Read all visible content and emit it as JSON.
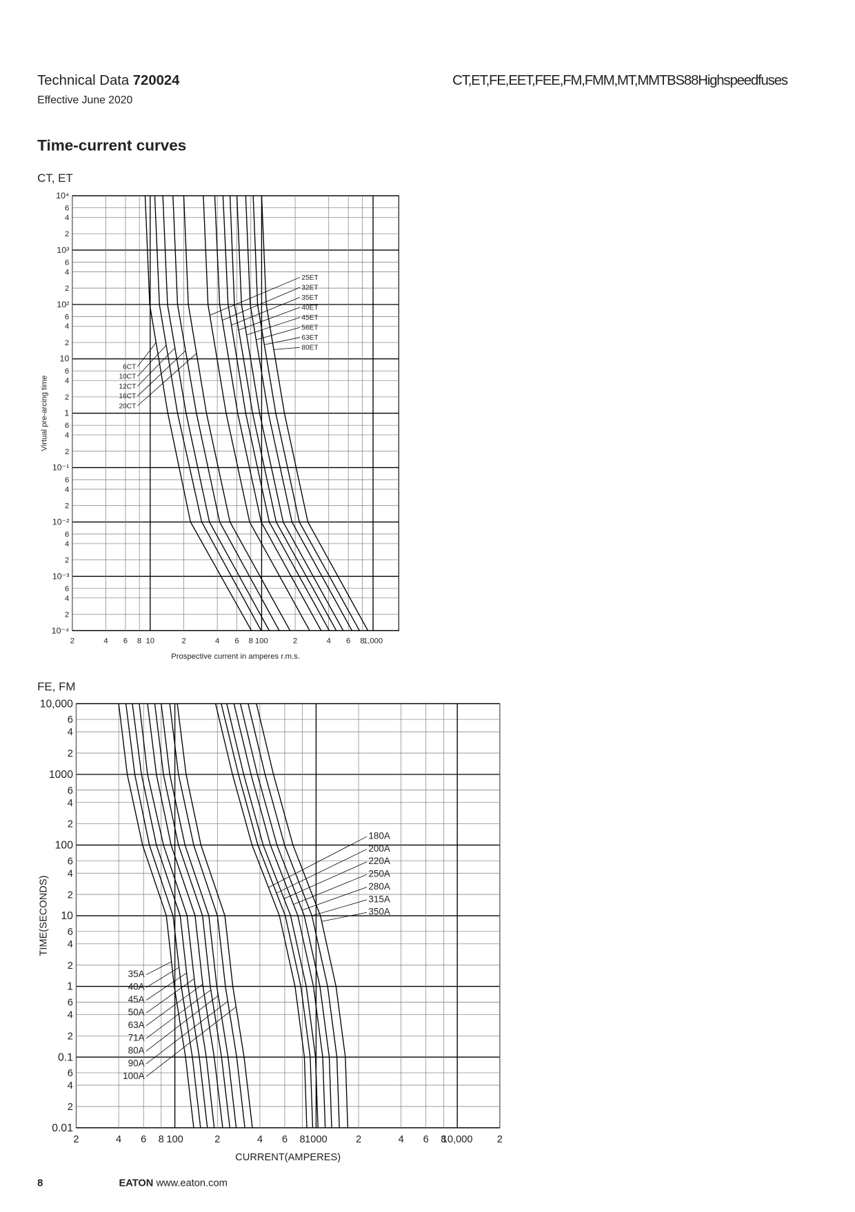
{
  "header": {
    "doc_label": "Technical Data",
    "doc_number": "720024",
    "effective": "Effective June 2020",
    "product": "CT,ET,FE,EET,FEE,FM,FMM,MT,MMTBS88Highspeedfuses"
  },
  "section_title": "Time-current curves",
  "chart_data": [
    {
      "type": "line",
      "title": "CT, ET",
      "y_label": "Virtual pre-arcing time",
      "x_label": "Prospective current in amperes r.m.s.",
      "log_x": true,
      "log_y": true,
      "grid": true,
      "color": "#000000",
      "xlim": [
        2,
        1700
      ],
      "ylim": [
        0.0001,
        10000
      ],
      "xticks": [
        2,
        4,
        6,
        8,
        10,
        {
          "value": 20,
          "label": "2"
        },
        {
          "value": 40,
          "label": "4"
        },
        {
          "value": 60,
          "label": "6"
        },
        {
          "value": 80,
          "label": "8"
        },
        100,
        {
          "value": 200,
          "label": "2"
        },
        {
          "value": 400,
          "label": "4"
        },
        {
          "value": 600,
          "label": "6"
        },
        {
          "value": 800,
          "label": "8"
        },
        {
          "value": 1000,
          "label": "1,000"
        }
      ],
      "yticks": [
        {
          "value": 0.0001,
          "label": "10⁻⁴"
        },
        {
          "value": 0.0002,
          "label": "2"
        },
        {
          "value": 0.0004,
          "label": "4"
        },
        {
          "value": 0.0006,
          "label": "6"
        },
        {
          "value": 0.001,
          "label": "10⁻³"
        },
        {
          "value": 0.002,
          "label": "2"
        },
        {
          "value": 0.004,
          "label": "4"
        },
        {
          "value": 0.006,
          "label": "6"
        },
        {
          "value": 0.01,
          "label": "10⁻²"
        },
        {
          "value": 0.02,
          "label": "2"
        },
        {
          "value": 0.04,
          "label": "4"
        },
        {
          "value": 0.06,
          "label": "6"
        },
        {
          "value": 0.1,
          "label": "10⁻¹"
        },
        {
          "value": 0.2,
          "label": "2"
        },
        {
          "value": 0.4,
          "label": "4"
        },
        {
          "value": 0.6,
          "label": "6"
        },
        1,
        2,
        4,
        6,
        10,
        {
          "value": 20,
          "label": "2"
        },
        {
          "value": 40,
          "label": "4"
        },
        {
          "value": 60,
          "label": "6"
        },
        {
          "value": 100,
          "label": "10²"
        },
        {
          "value": 200,
          "label": "2"
        },
        {
          "value": 400,
          "label": "4"
        },
        {
          "value": 600,
          "label": "6"
        },
        {
          "value": 1000,
          "label": "10³"
        },
        {
          "value": 2000,
          "label": "2"
        },
        {
          "value": 4000,
          "label": "4"
        },
        {
          "value": 6000,
          "label": "6"
        },
        {
          "value": 10000,
          "label": "10⁴"
        }
      ],
      "series": [
        {
          "name": "6CT",
          "x": [
            9,
            9.9,
            14.4,
            23,
            32,
            81
          ],
          "values": [
            10000,
            100,
            1,
            0.01,
            0.003,
            0.0001
          ]
        },
        {
          "name": "10CT",
          "x": [
            11,
            12.1,
            17.6,
            29,
            40,
            99
          ],
          "values": [
            10000,
            100,
            1,
            0.01,
            0.003,
            0.0001
          ]
        },
        {
          "name": "12CT",
          "x": [
            13,
            14.3,
            21,
            34,
            47,
            117
          ],
          "values": [
            10000,
            100,
            1,
            0.01,
            0.003,
            0.0001
          ]
        },
        {
          "name": "16CT",
          "x": [
            16,
            17.6,
            26,
            42,
            58,
            144
          ],
          "values": [
            10000,
            100,
            1,
            0.01,
            0.003,
            0.0001
          ]
        },
        {
          "name": "20CT",
          "x": [
            20,
            22,
            32,
            52,
            72,
            180
          ],
          "values": [
            10000,
            100,
            1,
            0.01,
            0.003,
            0.0001
          ]
        },
        {
          "name": "25ET",
          "x": [
            30,
            33,
            48,
            78,
            108,
            270
          ],
          "values": [
            10000,
            100,
            1,
            0.01,
            0.003,
            0.0001
          ]
        },
        {
          "name": "32ET",
          "x": [
            38,
            42,
            61,
            99,
            137,
            342
          ],
          "values": [
            10000,
            100,
            1,
            0.01,
            0.003,
            0.0001
          ]
        },
        {
          "name": "35ET",
          "x": [
            45,
            50,
            72,
            117,
            162,
            405
          ],
          "values": [
            10000,
            100,
            1,
            0.01,
            0.003,
            0.0001
          ]
        },
        {
          "name": "40ET",
          "x": [
            52,
            57,
            83,
            135,
            187,
            468
          ],
          "values": [
            10000,
            100,
            1,
            0.01,
            0.003,
            0.0001
          ]
        },
        {
          "name": "45ET",
          "x": [
            60,
            66,
            96,
            156,
            216,
            540
          ],
          "values": [
            10000,
            100,
            1,
            0.01,
            0.003,
            0.0001
          ]
        },
        {
          "name": "56ET",
          "x": [
            72,
            79,
            115,
            187,
            259,
            648
          ],
          "values": [
            10000,
            100,
            1,
            0.01,
            0.003,
            0.0001
          ]
        },
        {
          "name": "63ET",
          "x": [
            84,
            92,
            134,
            218,
            302,
            756
          ],
          "values": [
            10000,
            100,
            1,
            0.01,
            0.003,
            0.0001
          ]
        },
        {
          "name": "80ET",
          "x": [
            100,
            110,
            160,
            260,
            360,
            900
          ],
          "values": [
            10000,
            100,
            1,
            0.01,
            0.003,
            0.0001
          ]
        }
      ]
    },
    {
      "type": "line",
      "title": "FE, FM",
      "y_label": "TIME(SECONDS)",
      "x_label": "CURRENT(AMPERES)",
      "log_x": true,
      "log_y": true,
      "grid": true,
      "color": "#000000",
      "xlim": [
        20,
        20000
      ],
      "ylim": [
        0.01,
        10000
      ],
      "xticks": [
        {
          "value": 20,
          "label": "2"
        },
        {
          "value": 40,
          "label": "4"
        },
        {
          "value": 60,
          "label": "6"
        },
        {
          "value": 80,
          "label": "8"
        },
        100,
        {
          "value": 200,
          "label": "2"
        },
        {
          "value": 400,
          "label": "4"
        },
        {
          "value": 600,
          "label": "6"
        },
        {
          "value": 800,
          "label": "8"
        },
        1000,
        {
          "value": 2000,
          "label": "2"
        },
        {
          "value": 4000,
          "label": "4"
        },
        {
          "value": 6000,
          "label": "6"
        },
        {
          "value": 8000,
          "label": "8"
        },
        {
          "value": 10000,
          "label": "10,000"
        },
        {
          "value": 20000,
          "label": "2"
        }
      ],
      "yticks": [
        0.01,
        {
          "value": 0.02,
          "label": "2"
        },
        {
          "value": 0.04,
          "label": "4"
        },
        {
          "value": 0.06,
          "label": "6"
        },
        0.1,
        {
          "value": 0.2,
          "label": "2"
        },
        {
          "value": 0.4,
          "label": "4"
        },
        {
          "value": 0.6,
          "label": "6"
        },
        1,
        2,
        4,
        6,
        10,
        {
          "value": 20,
          "label": "2"
        },
        {
          "value": 40,
          "label": "4"
        },
        {
          "value": 60,
          "label": "6"
        },
        100,
        {
          "value": 200,
          "label": "2"
        },
        {
          "value": 400,
          "label": "4"
        },
        {
          "value": 600,
          "label": "6"
        },
        1000,
        {
          "value": 2000,
          "label": "2"
        },
        {
          "value": 4000,
          "label": "4"
        },
        {
          "value": 6000,
          "label": "6"
        },
        {
          "value": 10000,
          "label": "10,000"
        }
      ],
      "series": [
        {
          "name": "35A",
          "x": [
            40,
            46,
            59,
            87,
            99,
            119,
            136
          ],
          "values": [
            10000,
            1000,
            100,
            10,
            1,
            0.1,
            0.01
          ]
        },
        {
          "name": "40A",
          "x": [
            45,
            52,
            66,
            97,
            111,
            133,
            152
          ],
          "values": [
            10000,
            1000,
            100,
            10,
            1,
            0.1,
            0.01
          ]
        },
        {
          "name": "45A",
          "x": [
            50,
            58,
            74,
            109,
            124,
            149,
            170
          ],
          "values": [
            10000,
            1000,
            100,
            10,
            1,
            0.1,
            0.01
          ]
        },
        {
          "name": "50A",
          "x": [
            56,
            64,
            83,
            122,
            139,
            167,
            190
          ],
          "values": [
            10000,
            1000,
            100,
            10,
            1,
            0.1,
            0.01
          ]
        },
        {
          "name": "63A",
          "x": [
            64,
            74,
            94,
            139,
            158,
            190,
            218
          ],
          "values": [
            10000,
            1000,
            100,
            10,
            1,
            0.1,
            0.01
          ]
        },
        {
          "name": "71A",
          "x": [
            72,
            83,
            106,
            157,
            178,
            214,
            245
          ],
          "values": [
            10000,
            1000,
            100,
            10,
            1,
            0.1,
            0.01
          ]
        },
        {
          "name": "80A",
          "x": [
            80,
            92,
            118,
            174,
            198,
            238,
            272
          ],
          "values": [
            10000,
            1000,
            100,
            10,
            1,
            0.1,
            0.01
          ]
        },
        {
          "name": "90A",
          "x": [
            92,
            106,
            136,
            200,
            228,
            274,
            313
          ],
          "values": [
            10000,
            1000,
            100,
            10,
            1,
            0.1,
            0.01
          ]
        },
        {
          "name": "100A",
          "x": [
            104,
            120,
            153,
            226,
            257,
            309,
            354
          ],
          "values": [
            10000,
            1000,
            100,
            10,
            1,
            0.1,
            0.01
          ]
        },
        {
          "name": "180A",
          "x": [
            194,
            256,
            352,
            550,
            710,
            826,
            860
          ],
          "values": [
            10000,
            1000,
            100,
            10,
            1,
            0.1,
            0.01
          ]
        },
        {
          "name": "200A",
          "x": [
            213,
            282,
            387,
            605,
            781,
            909,
            946
          ],
          "values": [
            10000,
            1000,
            100,
            10,
            1,
            0.1,
            0.01
          ]
        },
        {
          "name": "220A",
          "x": [
            233,
            307,
            422,
            660,
            852,
            991,
            1032
          ],
          "values": [
            10000,
            1000,
            100,
            10,
            1,
            0.1,
            0.01
          ]
        },
        {
          "name": "250A",
          "x": [
            262,
            346,
            475,
            743,
            959,
            1115,
            1161
          ],
          "values": [
            10000,
            1000,
            100,
            10,
            1,
            0.1,
            0.01
          ]
        },
        {
          "name": "280A",
          "x": [
            291,
            384,
            528,
            825,
            1065,
            1239,
            1290
          ],
          "values": [
            10000,
            1000,
            100,
            10,
            1,
            0.1,
            0.01
          ]
        },
        {
          "name": "315A",
          "x": [
            330,
            435,
            598,
            935,
            1207,
            1404,
            1462
          ],
          "values": [
            10000,
            1000,
            100,
            10,
            1,
            0.1,
            0.01
          ]
        },
        {
          "name": "350A",
          "x": [
            378,
            499,
            686,
            1073,
            1385,
            1611,
            1677
          ],
          "values": [
            10000,
            1000,
            100,
            10,
            1,
            0.1,
            0.01
          ]
        }
      ]
    }
  ],
  "footer": {
    "page": "8",
    "brand": "EATON",
    "url": "www.eaton.com"
  }
}
